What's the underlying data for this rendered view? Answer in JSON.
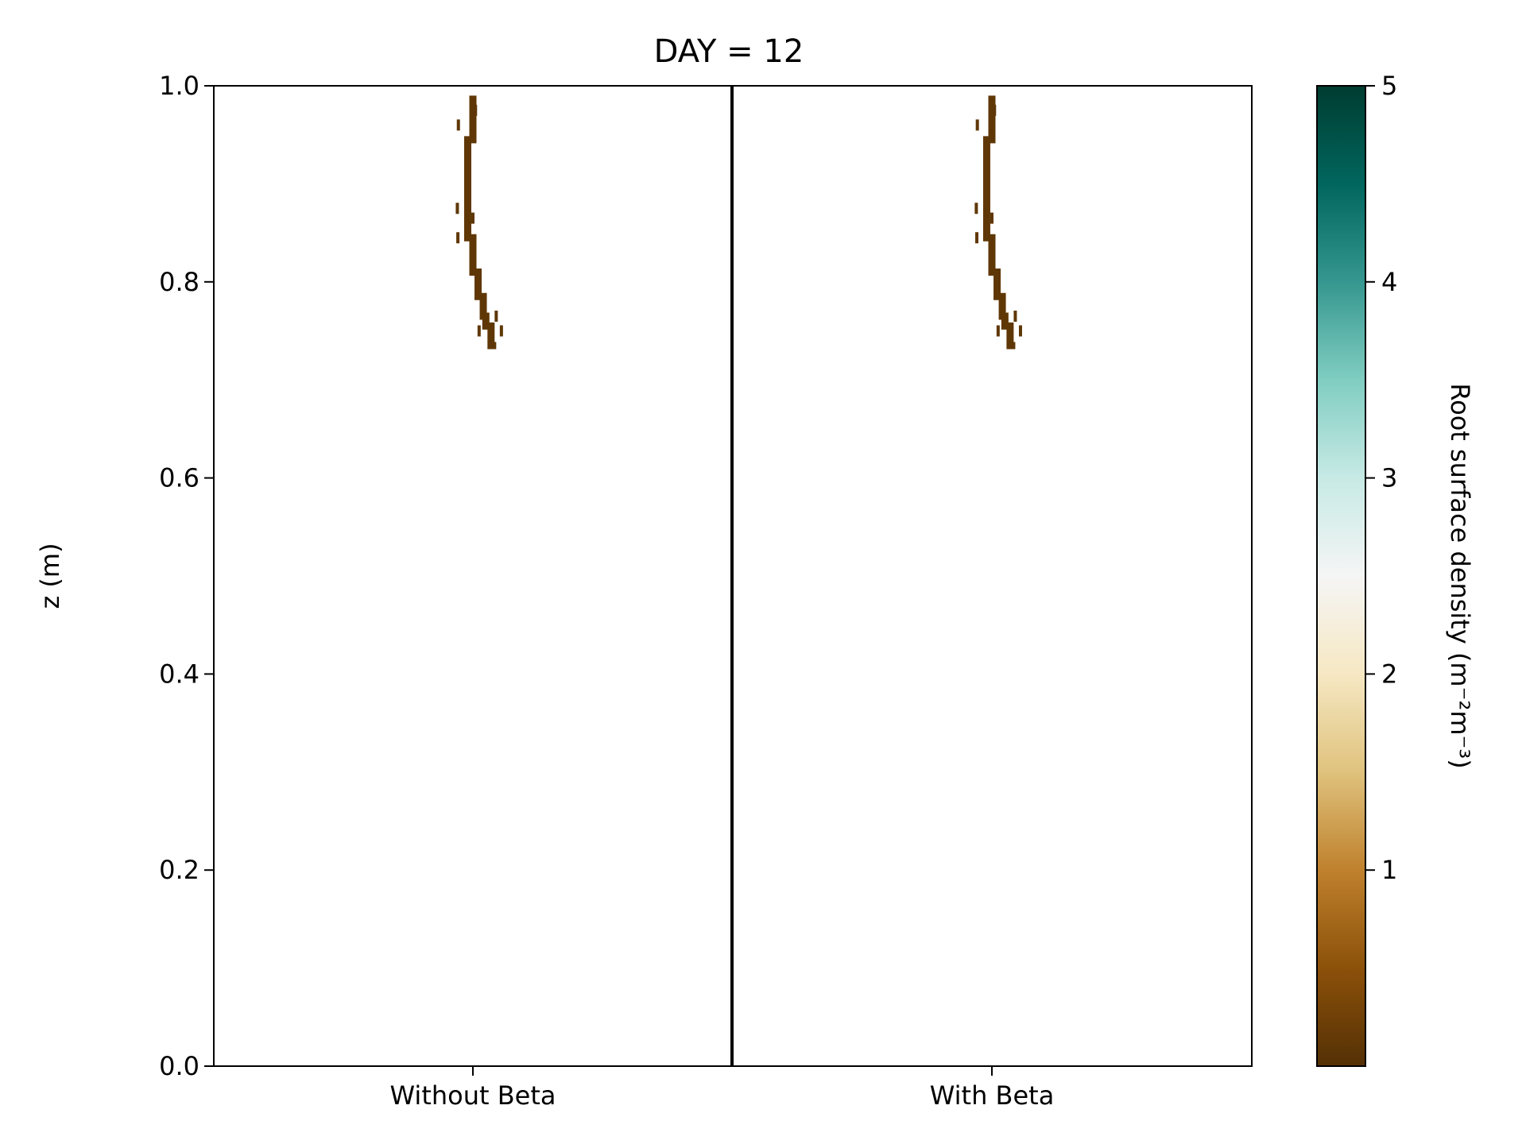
{
  "chart_data": {
    "type": "heatmap",
    "title": "DAY = 12",
    "xlabel": "",
    "ylabel": "z (m)",
    "ylim": [
      0.0,
      1.0
    ],
    "yticks": [
      0.0,
      0.2,
      0.4,
      0.6,
      0.8,
      1.0
    ],
    "ytick_labels": [
      "0.0",
      "0.2",
      "0.4",
      "0.6",
      "0.8",
      "1.0"
    ],
    "categories": [
      "Without Beta",
      "With Beta"
    ],
    "grid": false,
    "colorbar": {
      "label": "Root surface density (m⁻²m⁻³)",
      "colormap": "BrBG",
      "range": [
        0,
        5
      ],
      "ticks": [
        1,
        2,
        3,
        4,
        5
      ],
      "tick_labels": [
        "1",
        "2",
        "3",
        "4",
        "5"
      ],
      "colors": [
        "#543005",
        "#8c510a",
        "#bf812d",
        "#dfc27d",
        "#f6e8c3",
        "#f5f5f5",
        "#c7eae5",
        "#80cdc1",
        "#35978f",
        "#01665e",
        "#003c30"
      ]
    },
    "panels": [
      {
        "name": "Without Beta",
        "root_path": [
          {
            "x": 0.5,
            "z": 0.99
          },
          {
            "x": 0.5,
            "z": 0.955
          },
          {
            "x": 0.49,
            "z": 0.945
          },
          {
            "x": 0.49,
            "z": 0.855
          },
          {
            "x": 0.5,
            "z": 0.845
          },
          {
            "x": 0.5,
            "z": 0.82
          },
          {
            "x": 0.51,
            "z": 0.81
          },
          {
            "x": 0.51,
            "z": 0.795
          },
          {
            "x": 0.52,
            "z": 0.785
          },
          {
            "x": 0.525,
            "z": 0.765
          },
          {
            "x": 0.535,
            "z": 0.755
          },
          {
            "x": 0.535,
            "z": 0.745
          },
          {
            "x": 0.545,
            "z": 0.735
          }
        ],
        "root_density_approx": 0.1,
        "scatter_fragments": [
          {
            "x": 0.47,
            "z": 0.875
          },
          {
            "x": 0.5,
            "z": 0.865
          },
          {
            "x": 0.471,
            "z": 0.845
          },
          {
            "x": 0.545,
            "z": 0.765
          },
          {
            "x": 0.555,
            "z": 0.75
          },
          {
            "x": 0.512,
            "z": 0.75
          },
          {
            "x": 0.472,
            "z": 0.96
          },
          {
            "x": 0.505,
            "z": 0.975
          }
        ]
      },
      {
        "name": "With Beta",
        "root_path": [
          {
            "x": 0.5,
            "z": 0.99
          },
          {
            "x": 0.5,
            "z": 0.955
          },
          {
            "x": 0.49,
            "z": 0.945
          },
          {
            "x": 0.49,
            "z": 0.855
          },
          {
            "x": 0.5,
            "z": 0.845
          },
          {
            "x": 0.5,
            "z": 0.82
          },
          {
            "x": 0.51,
            "z": 0.81
          },
          {
            "x": 0.51,
            "z": 0.795
          },
          {
            "x": 0.52,
            "z": 0.785
          },
          {
            "x": 0.525,
            "z": 0.765
          },
          {
            "x": 0.535,
            "z": 0.755
          },
          {
            "x": 0.535,
            "z": 0.745
          },
          {
            "x": 0.545,
            "z": 0.735
          }
        ],
        "root_density_approx": 0.1,
        "scatter_fragments": [
          {
            "x": 0.47,
            "z": 0.875
          },
          {
            "x": 0.5,
            "z": 0.865
          },
          {
            "x": 0.471,
            "z": 0.845
          },
          {
            "x": 0.545,
            "z": 0.765
          },
          {
            "x": 0.555,
            "z": 0.75
          },
          {
            "x": 0.512,
            "z": 0.75
          },
          {
            "x": 0.472,
            "z": 0.96
          },
          {
            "x": 0.505,
            "z": 0.975
          }
        ]
      }
    ]
  }
}
